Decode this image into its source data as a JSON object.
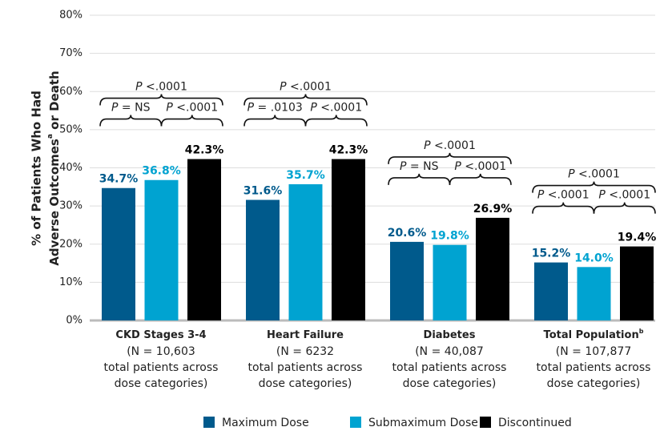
{
  "chart_data": {
    "type": "bar",
    "y_label": {
      "line1": "% of Patients Who Had",
      "line2": "Adverse Outcomes",
      "line2_sup": "a",
      "line2_end": " or Death"
    },
    "categories": [
      "CKD Stages 3-4",
      "Heart Failure",
      "Diabetes",
      "Total Population"
    ],
    "category_superscripts": [
      null,
      null,
      null,
      "b"
    ],
    "category_notes": [
      [
        "(N = 10,603",
        "total patients across",
        "dose categories)"
      ],
      [
        "(N = 6232",
        "total patients across",
        "dose categories)"
      ],
      [
        "(N = 40,087",
        "total patients across",
        "dose categories)"
      ],
      [
        "(N = 107,877",
        "total patients across",
        "dose categories)"
      ]
    ],
    "series": [
      {
        "name": "Maximum Dose",
        "color": "#005a8c",
        "values": [
          34.7,
          31.6,
          20.6,
          15.2
        ],
        "value_labels": [
          "34.7%",
          "31.6%",
          "20.6%",
          "15.2%"
        ]
      },
      {
        "name": "Submaximum Dose",
        "color": "#00a3d1",
        "values": [
          36.8,
          35.7,
          19.8,
          14.0
        ],
        "value_labels": [
          "36.8%",
          "35.7%",
          "19.8%",
          "14.0%"
        ]
      },
      {
        "name": "Discontinued",
        "color": "#000000",
        "values": [
          42.3,
          42.3,
          26.9,
          19.4
        ],
        "value_labels": [
          "42.3%",
          "42.3%",
          "26.9%",
          "19.4%"
        ]
      }
    ],
    "ylim": [
      0,
      80
    ],
    "yticks": [
      {
        "value": 0,
        "label": "0%"
      },
      {
        "value": 10,
        "label": "10%"
      },
      {
        "value": 20,
        "label": "20%"
      },
      {
        "value": 30,
        "label": "30%"
      },
      {
        "value": 40,
        "label": "40%"
      },
      {
        "value": 50,
        "label": "50%"
      },
      {
        "value": 60,
        "label": "60%"
      },
      {
        "value": 70,
        "label": "70%"
      },
      {
        "value": 80,
        "label": "80%"
      }
    ],
    "grid": true,
    "p_symbol": "P",
    "comparisons": [
      {
        "group": 0,
        "from": 0,
        "to": 1,
        "text": " = NS"
      },
      {
        "group": 0,
        "from": 1,
        "to": 2,
        "text": " <.0001"
      },
      {
        "group": 0,
        "from": 0,
        "to": 2,
        "text": " <.0001"
      },
      {
        "group": 1,
        "from": 0,
        "to": 1,
        "text": " = .0103"
      },
      {
        "group": 1,
        "from": 1,
        "to": 2,
        "text": " <.0001"
      },
      {
        "group": 1,
        "from": 0,
        "to": 2,
        "text": " <.0001"
      },
      {
        "group": 2,
        "from": 0,
        "to": 1,
        "text": " = NS"
      },
      {
        "group": 2,
        "from": 1,
        "to": 2,
        "text": " <.0001"
      },
      {
        "group": 2,
        "from": 0,
        "to": 2,
        "text": " <.0001"
      },
      {
        "group": 3,
        "from": 0,
        "to": 1,
        "text": " <.0001"
      },
      {
        "group": 3,
        "from": 1,
        "to": 2,
        "text": " <.0001"
      },
      {
        "group": 3,
        "from": 0,
        "to": 2,
        "text": " <.0001"
      }
    ]
  }
}
